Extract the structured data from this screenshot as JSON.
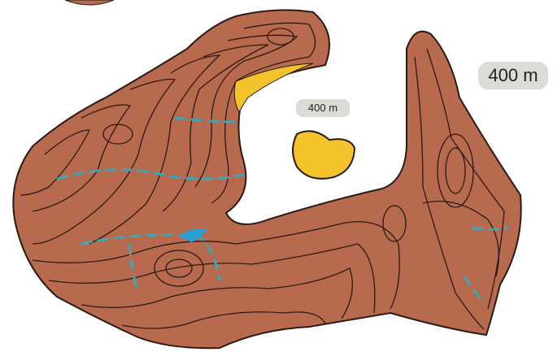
{
  "labels": [
    {
      "text": "400 m"
    },
    {
      "text": "400 m"
    }
  ]
}
